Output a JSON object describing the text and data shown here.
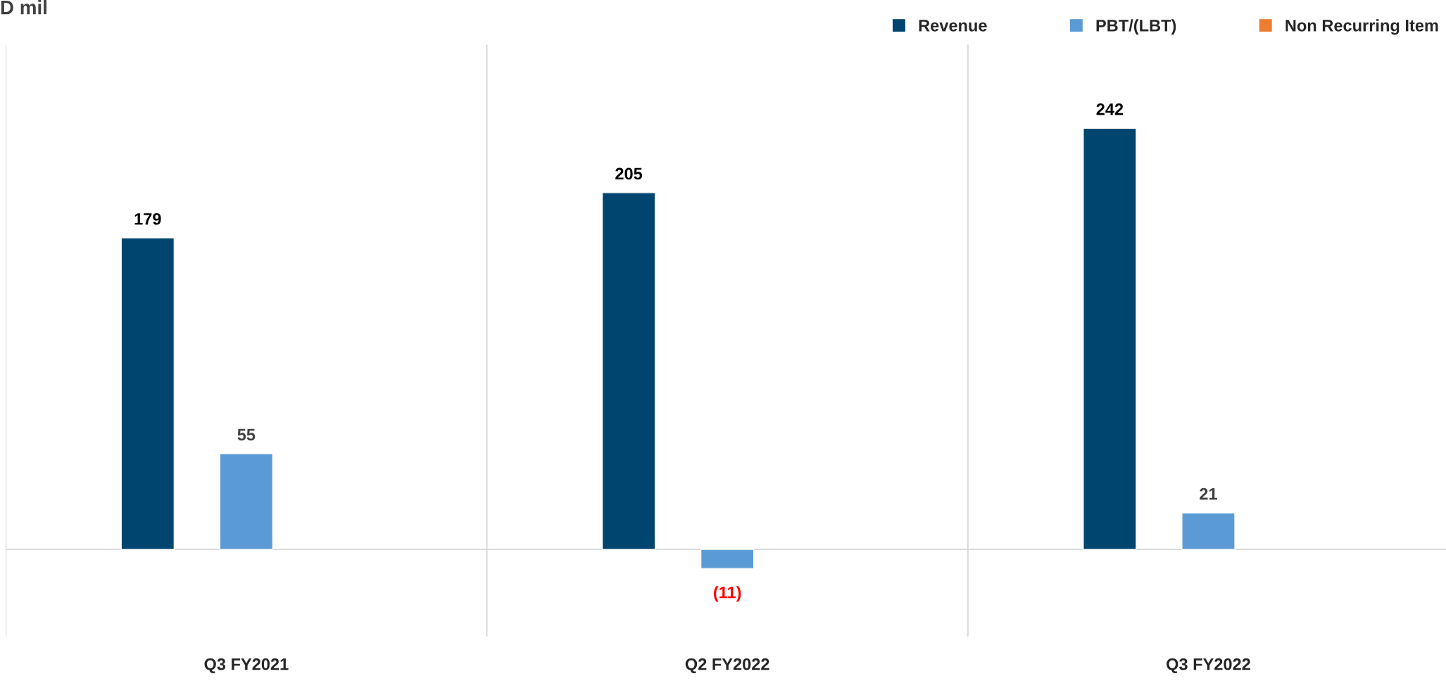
{
  "chart_data": {
    "type": "bar",
    "title": "D mil",
    "categories": [
      "Q3 FY2021",
      "Q2 FY2022",
      "Q3 FY2022"
    ],
    "series": [
      {
        "name": "Revenue",
        "color": "#00456f",
        "values": [
          179,
          205,
          242
        ],
        "value_labels": [
          "179",
          "205",
          "242"
        ]
      },
      {
        "name": "PBT/(LBT)",
        "color": "#5b9bd5",
        "values": [
          55,
          -11,
          21
        ],
        "value_labels": [
          "55",
          "(11)",
          "21"
        ]
      },
      {
        "name": "Non Recurring Item",
        "color": "#ed7d31",
        "values": [
          null,
          null,
          null
        ]
      }
    ],
    "ylim": [
      -50,
      290
    ],
    "tick_labels": "x",
    "grid": "x",
    "legend": "top right"
  }
}
